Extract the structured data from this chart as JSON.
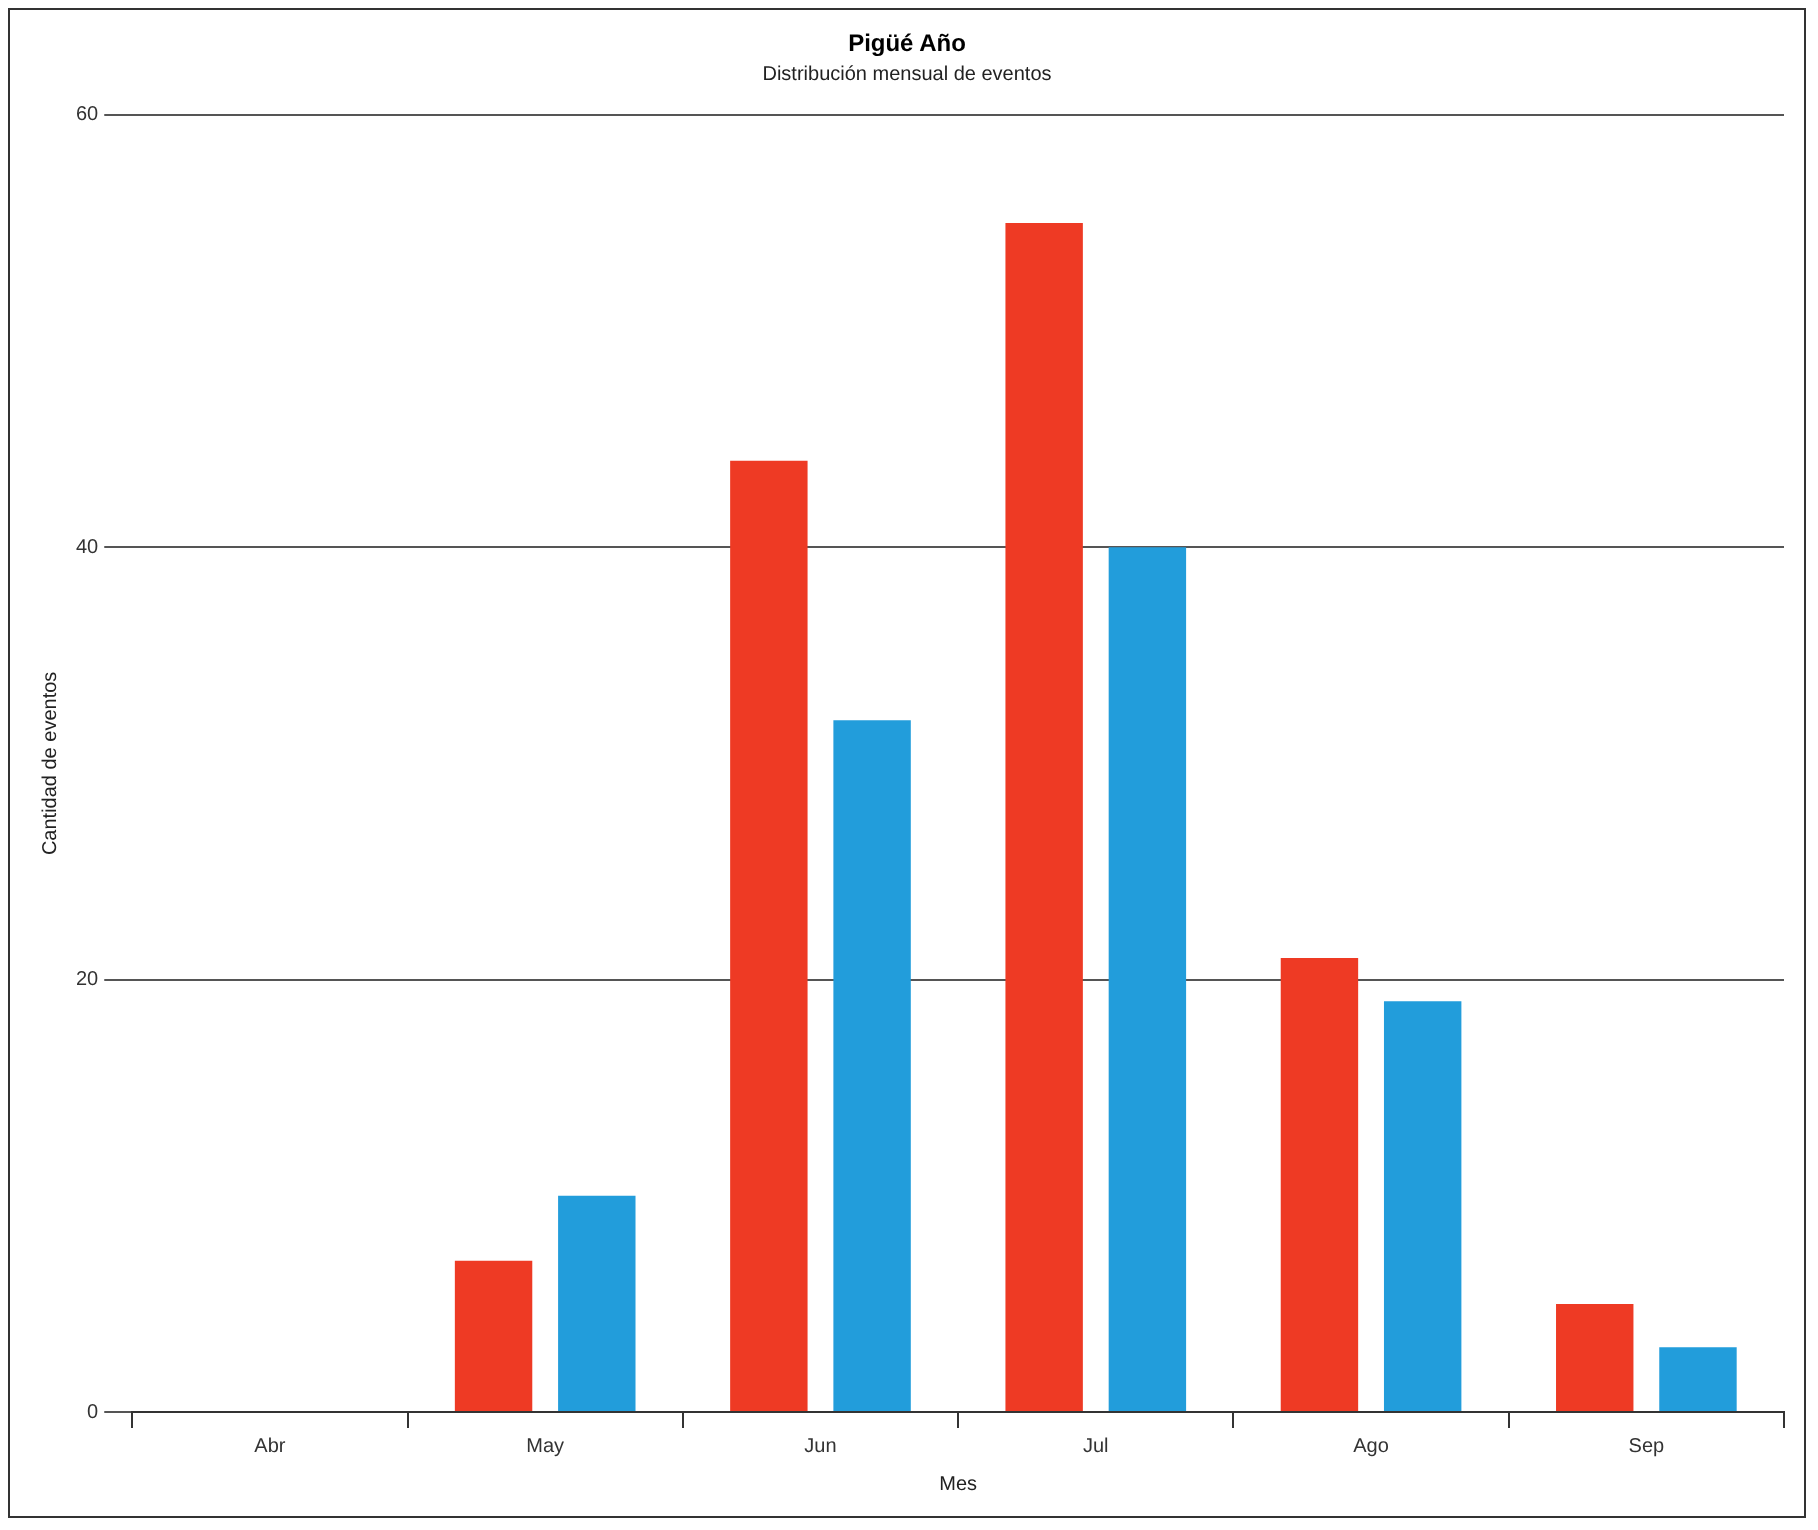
{
  "chart_data": {
    "type": "bar",
    "title": "Pigüé Año",
    "subtitle": "Distribución mensual de eventos",
    "xlabel": "Mes",
    "ylabel": "Cantidad de eventos",
    "categories": [
      "Abr",
      "May",
      "Jun",
      "Jul",
      "Ago",
      "Sep"
    ],
    "series": [
      {
        "color": "#ee3a24",
        "values": [
          0,
          7,
          44,
          55,
          21,
          5
        ]
      },
      {
        "color": "#229ddb",
        "values": [
          0,
          10,
          32,
          40,
          19,
          3
        ]
      }
    ],
    "ylim": [
      0,
      60
    ],
    "yticks": [
      0,
      20,
      40,
      60
    ],
    "grid": "y",
    "legend": false
  }
}
